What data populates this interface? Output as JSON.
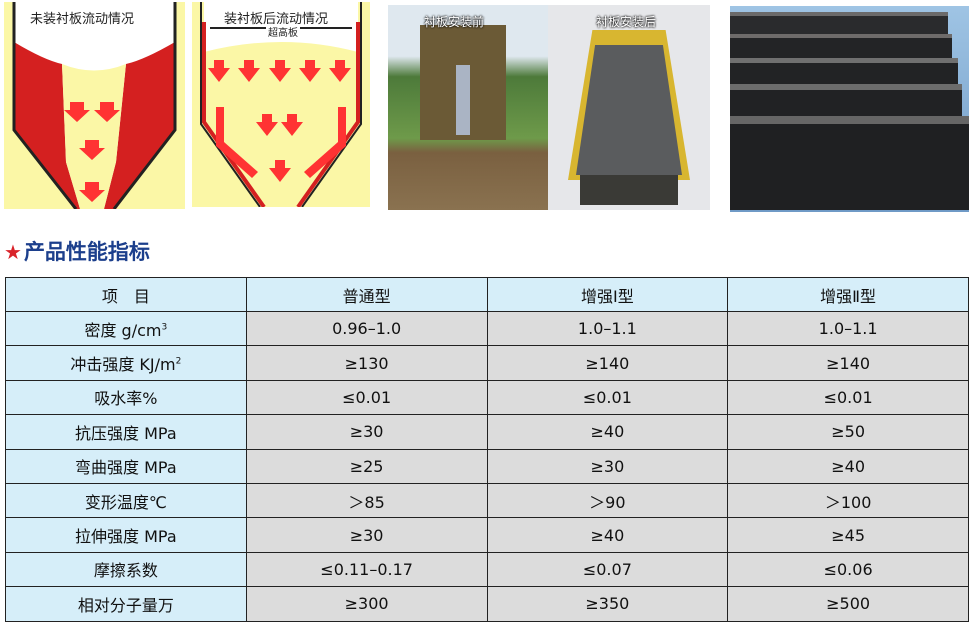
{
  "figures": {
    "flow_before_caption": "未装衬板流动情况",
    "flow_after_caption": "装衬板后流动情况",
    "flow_after_sublabel": "超高板",
    "photo_before_caption": "衬板安装前",
    "photo_after_caption": "衬板安装后"
  },
  "section_title": "产品性能指标",
  "colors": {
    "title": "#1c3f8c",
    "star": "#d9232a",
    "label_bg": "#d6eef9",
    "value_bg": "#dcdcdc"
  },
  "table": {
    "headers": [
      "项　目",
      "普通型",
      "增强Ⅰ型",
      "增强Ⅱ型"
    ],
    "rows": [
      {
        "label": "密度 g/cm",
        "sup": "3",
        "values": [
          "0.96–1.0",
          "1.0–1.1",
          "1.0–1.1"
        ]
      },
      {
        "label": "冲击强度 KJ/m",
        "sup": "2",
        "values": [
          "≥130",
          "≥140",
          "≥140"
        ]
      },
      {
        "label": "吸水率%",
        "sup": "",
        "values": [
          "≤0.01",
          "≤0.01",
          "≤0.01"
        ]
      },
      {
        "label": "抗压强度 MPa",
        "sup": "",
        "values": [
          "≥30",
          "≥40",
          "≥50"
        ]
      },
      {
        "label": "弯曲强度 MPa",
        "sup": "",
        "values": [
          "≥25",
          "≥30",
          "≥40"
        ]
      },
      {
        "label": "变形温度℃",
        "sup": "",
        "values": [
          "＞85",
          "＞90",
          "＞100"
        ]
      },
      {
        "label": "拉伸强度 MPa",
        "sup": "",
        "values": [
          "≥30",
          "≥40",
          "≥45"
        ]
      },
      {
        "label": "摩擦系数",
        "sup": "",
        "values": [
          "≤0.11–0.17",
          "≤0.07",
          "≤0.06"
        ]
      },
      {
        "label": "相对分子量万",
        "sup": "",
        "values": [
          "≥300",
          "≥350",
          "≥500"
        ]
      }
    ]
  }
}
